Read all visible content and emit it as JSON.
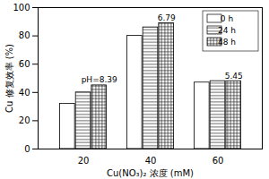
{
  "chart_data": {
    "type": "bar",
    "xlabel": "Cu(NO₃)₂ 浓度 (mM)",
    "ylabel": "Cu 修复效率 (%)",
    "categories": [
      "20",
      "40",
      "60"
    ],
    "series": [
      {
        "name": "0 h",
        "color": "#ffffff",
        "values": [
          32,
          80,
          47
        ]
      },
      {
        "name": "24 h",
        "color": "#ffffff",
        "values": [
          40,
          86,
          48
        ]
      },
      {
        "name": "48 h",
        "color": "#ffffff",
        "values": [
          45,
          89,
          48
        ]
      }
    ],
    "annotations": [
      {
        "category": "20",
        "text": "pH=8.39"
      },
      {
        "category": "40",
        "text": "6.79"
      },
      {
        "category": "60",
        "text": "5.45"
      }
    ],
    "ylim": [
      0,
      100
    ],
    "yticks": [
      0,
      20,
      40,
      60,
      80,
      100
    ],
    "grid": false,
    "legend": "top-right"
  }
}
